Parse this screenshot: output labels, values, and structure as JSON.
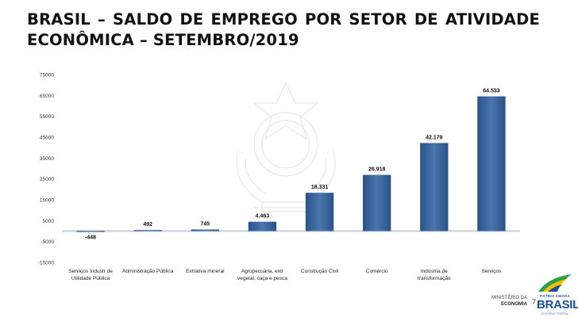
{
  "header": {
    "title": "BRASIL – SALDO DE EMPREGO POR SETOR DE ATIVIDADE ECONÔMICA – SETEMBRO/2019"
  },
  "chart_data": {
    "type": "bar",
    "categories": [
      "Serviços Industr de Utilidade Pública",
      "Administração Pública",
      "Extrativa mineral",
      "Agropecuária, extr vegetal, caça e pesca",
      "Construção Civil",
      "Comércio",
      "Indústria de transformação",
      "Serviços"
    ],
    "values": [
      -448,
      492,
      745,
      4463,
      18331,
      26918,
      42179,
      64533
    ],
    "data_labels": [
      "-448",
      "492",
      "745",
      "4.463",
      "18.331",
      "26.918",
      "42.179",
      "64.533"
    ],
    "ylim": [
      -15000,
      75000
    ],
    "yticks": [
      -15000,
      -5000,
      5000,
      15000,
      25000,
      35000,
      45000,
      55000,
      65000,
      75000
    ],
    "ytick_labels": [
      "-15000",
      "-5000",
      "5000",
      "15000",
      "25000",
      "35000",
      "45000",
      "55000",
      "65000",
      "75000"
    ],
    "grid": false,
    "legend": "none",
    "bar_color": "#2f5b94"
  },
  "footer": {
    "ministry_line1": "MINISTÉRIO DA",
    "ministry_line2": "ECONOMIA",
    "page_number": "7",
    "logo_slogan": "PÁTRIA AMADA",
    "logo_name": "BRASIL",
    "logo_sub": "GOVERNO FEDERAL"
  }
}
